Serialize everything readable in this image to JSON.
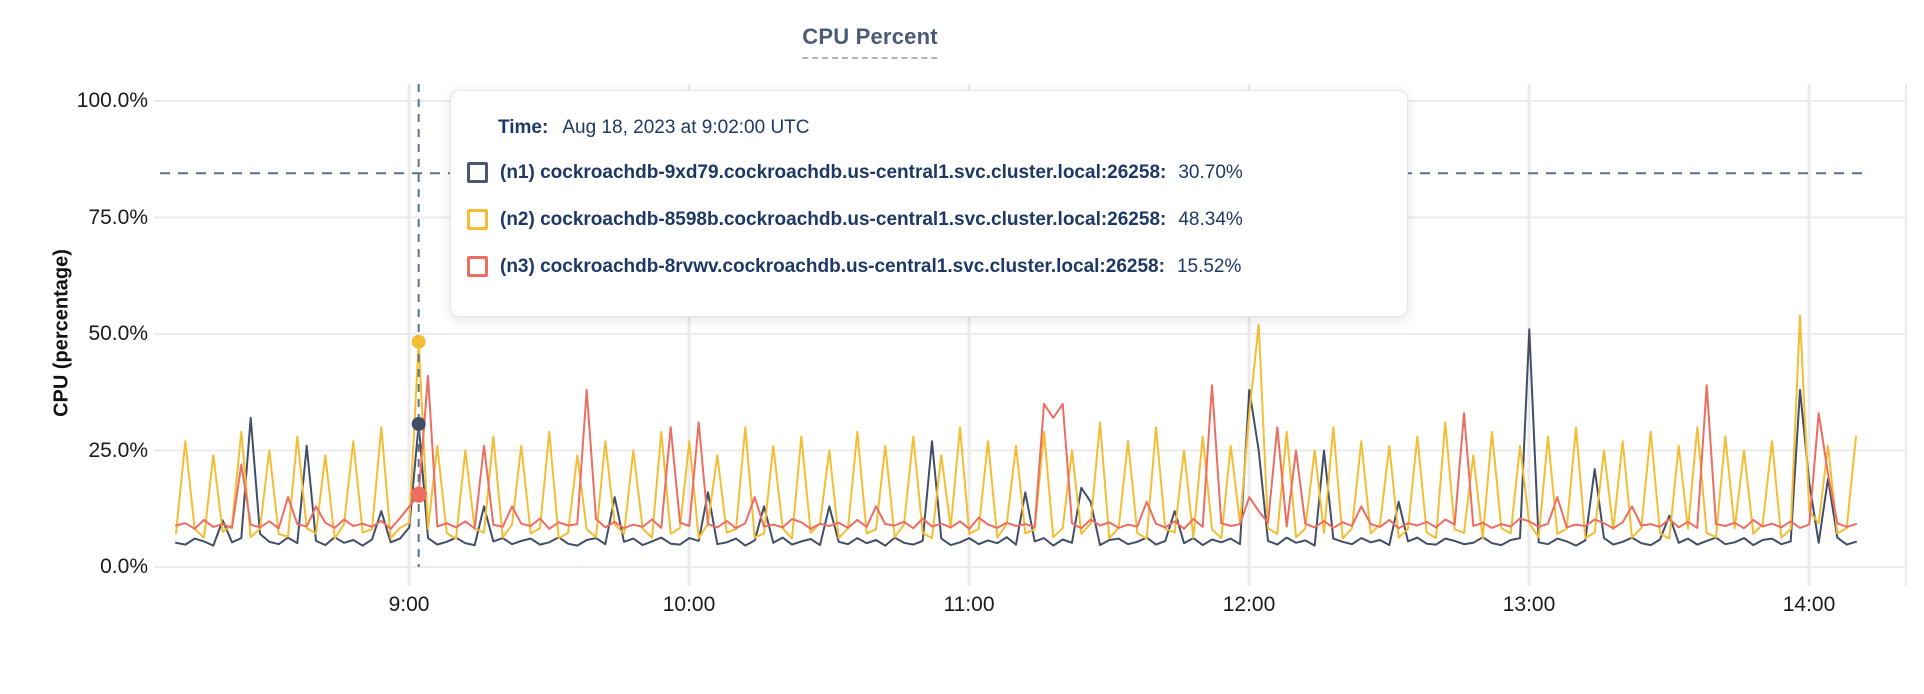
{
  "title": "CPU Percent",
  "y_axis_label": "CPU (percentage)",
  "tooltip": {
    "time_label": "Time:",
    "time_value": "Aug 18, 2023 at 9:02:00 UTC",
    "series": [
      {
        "label": "(n1) cockroachdb-9xd79.cockroachdb.us-central1.svc.cluster.local:26258:",
        "value": "30.70%",
        "color": "#475872"
      },
      {
        "label": "(n2) cockroachdb-8598b.cockroachdb.us-central1.svc.cluster.local:26258:",
        "value": "48.34%",
        "color": "#f5bd33"
      },
      {
        "label": "(n3) cockroachdb-8rvwv.cockroachdb.us-central1.svc.cluster.local:26258:",
        "value": "15.52%",
        "color": "#ec6d62"
      }
    ]
  },
  "chart_data": {
    "type": "line",
    "title": "CPU Percent",
    "xlabel": "",
    "ylabel": "CPU (percentage)",
    "x_tick_labels": [
      "9:00",
      "10:00",
      "11:00",
      "12:00",
      "13:00",
      "14:00"
    ],
    "y_tick_labels": [
      "100.0%",
      "75.0%",
      "50.0%",
      "25.0%",
      "0.0%"
    ],
    "ylim": [
      0,
      100
    ],
    "x_range": "08:10 - 14:10",
    "x_step_minutes": 2,
    "grid": true,
    "legend_position": "tooltip",
    "threshold_percent": 84.5,
    "hover": {
      "time": "9:02",
      "index": 26,
      "values": {
        "n1": 30.7,
        "n2": 48.34,
        "n3": 15.52
      }
    },
    "series": [
      {
        "id": "n1",
        "name": "(n1) cockroachdb-9xd79.cockroachdb.us-central1.svc.cluster.local:26258",
        "color": "#414e66",
        "values": [
          5.2,
          4.8,
          6.1,
          5.5,
          4.6,
          10,
          5.3,
          6.2,
          32,
          7.1,
          5.4,
          4.9,
          6.3,
          5.1,
          26,
          5.6,
          4.7,
          6.4,
          5.2,
          5.8,
          4.6,
          5.9,
          12,
          5.3,
          6.1,
          8.5,
          30.7,
          6.2,
          4.8,
          5.4,
          6.3,
          5.1,
          4.7,
          13,
          5.5,
          6.2,
          4.9,
          5.6,
          6.1,
          4.8,
          5.3,
          6.4,
          5,
          4.6,
          5.8,
          6.2,
          4.9,
          15,
          5.4,
          6.1,
          4.7,
          5.5,
          6.3,
          5,
          4.8,
          6.2,
          5.6,
          16,
          4.9,
          5.3,
          6.1,
          4.6,
          5.7,
          13,
          5.2,
          6.3,
          4.8,
          5.5,
          6,
          4.7,
          13,
          5.4,
          4.9,
          6.2,
          5.1,
          5.8,
          4.6,
          6.3,
          5.2,
          4.8,
          5.6,
          27,
          6.1,
          4.7,
          5.3,
          6.2,
          4.9,
          5.7,
          5.1,
          6.4,
          4.8,
          16,
          5.5,
          6.2,
          4.6,
          5.9,
          5.2,
          17,
          14,
          4.7,
          5.8,
          6.1,
          4.9,
          5.4,
          6.3,
          4.8,
          5.6,
          12,
          5.1,
          6.2,
          4.7,
          5.9,
          5.3,
          6.1,
          4.9,
          38,
          25,
          5.6,
          4.8,
          6.3,
          5.2,
          5.7,
          4.6,
          25,
          6.1,
          5.4,
          4.9,
          6.2,
          5.3,
          5.8,
          4.7,
          14,
          5.5,
          6.3,
          5,
          4.8,
          6.1,
          5.6,
          4.9,
          5.2,
          6.4,
          5.1,
          4.7,
          5.8,
          6.2,
          51,
          5.3,
          4.9,
          6.1,
          5.5,
          4.6,
          5.7,
          21,
          6.2,
          4.8,
          5.4,
          6.3,
          5.1,
          4.7,
          5.9,
          11,
          5.2,
          6.1,
          4.8,
          5.6,
          6.3,
          4.9,
          5.3,
          6.2,
          4.7,
          5.8,
          6.1,
          4.9,
          5.5,
          38,
          18,
          5.2,
          19,
          6.3,
          4.8,
          5.4
        ]
      },
      {
        "id": "n2",
        "name": "(n2) cockroachdb-8598b.cockroachdb.us-central1.svc.cluster.local:26258",
        "color": "#f5bd33",
        "values": [
          7.2,
          27,
          8.1,
          6.3,
          24,
          7.5,
          9,
          29,
          6.4,
          8.2,
          25,
          7.1,
          6.5,
          28,
          8.3,
          7.2,
          24,
          6.1,
          9.2,
          27,
          7.4,
          8.1,
          30,
          6.2,
          8.4,
          9.5,
          48.3,
          8.2,
          26,
          7.3,
          6.1,
          25,
          8.2,
          7.4,
          28,
          6.3,
          9.1,
          26,
          7.2,
          8.3,
          29,
          6.2,
          7.3,
          24,
          8.1,
          6.4,
          27,
          9.2,
          7.1,
          25,
          8.2,
          6.3,
          29,
          7.1,
          8.4,
          27,
          6.2,
          9.3,
          24,
          7.4,
          8.1,
          30,
          6.3,
          7.2,
          26,
          8.3,
          6.1,
          28,
          7.3,
          9.4,
          25,
          6.2,
          8.3,
          29,
          7.2,
          8.1,
          26,
          6.4,
          9.1,
          28,
          7.3,
          6.2,
          24,
          8.4,
          30,
          7.1,
          8.2,
          27,
          6.3,
          9.2,
          26,
          7.2,
          8.1,
          29,
          6.4,
          8.3,
          25,
          7.1,
          9.3,
          31,
          6.2,
          8.4,
          27,
          7.3,
          6.1,
          30,
          8.2,
          7.4,
          25,
          6.3,
          28,
          8.1,
          6.2,
          26,
          9.4,
          33,
          52,
          8.3,
          7.1,
          29,
          6.4,
          8.2,
          25,
          7.3,
          30,
          6.1,
          8.3,
          27,
          7.2,
          9.1,
          26,
          6.3,
          8.2,
          28,
          7.4,
          6.2,
          31,
          8.1,
          7.3,
          24,
          6.1,
          29,
          8.3,
          7.2,
          26,
          9.3,
          6.4,
          28,
          7.1,
          8.2,
          30,
          6.2,
          7.4,
          25,
          8.1,
          27,
          6.3,
          8.4,
          29,
          7.2,
          6.1,
          26,
          8.2,
          30,
          7.3,
          6.4,
          28,
          8.3,
          25,
          7.1,
          9.2,
          27,
          6.3,
          8.1,
          54,
          12,
          9.4,
          26,
          7.2,
          8.3,
          28
        ]
      },
      {
        "id": "n3",
        "name": "(n3) cockroachdb-8rvwv.cockroachdb.us-central1.svc.cluster.local:26258",
        "color": "#ec6d62",
        "values": [
          8.9,
          9.4,
          8.2,
          10.1,
          8.6,
          9.2,
          8.4,
          22,
          9.1,
          8.5,
          9.8,
          8.3,
          15,
          9.2,
          8.7,
          13,
          9.5,
          8.4,
          10.2,
          8.8,
          9.3,
          8.6,
          9.9,
          8.2,
          10.5,
          13,
          15.5,
          41,
          8.7,
          9.4,
          8.5,
          9.8,
          8.3,
          26,
          9.1,
          8.6,
          13,
          9.3,
          8.8,
          10.4,
          8.2,
          9.6,
          8.9,
          9.2,
          38,
          10.3,
          8.5,
          9.7,
          8.3,
          9.1,
          8.6,
          10.2,
          8.4,
          30,
          9.5,
          8.8,
          31,
          9.2,
          8.5,
          9.9,
          8.3,
          9.4,
          15,
          8.7,
          9.1,
          8.5,
          10.3,
          9.6,
          8.2,
          9.3,
          8.8,
          9.5,
          8.4,
          10.1,
          8.6,
          13,
          9.2,
          8.9,
          9.7,
          8.3,
          10.4,
          8.7,
          9.3,
          8.5,
          9.8,
          8.2,
          10.6,
          9.1,
          8.4,
          9.5,
          8.8,
          9.2,
          8.6,
          35,
          32,
          35,
          9.4,
          8.3,
          10.2,
          8.9,
          9.6,
          8.4,
          9.1,
          8.7,
          14,
          9.3,
          8.5,
          9.8,
          8.2,
          10.3,
          8.6,
          39,
          9.4,
          8.8,
          9.2,
          15,
          12,
          9.5,
          30,
          8.7,
          25,
          9.3,
          8.5,
          9.9,
          8.4,
          9.6,
          8.8,
          13,
          9.2,
          8.6,
          10.1,
          8.3,
          9.4,
          8.9,
          9.7,
          8.5,
          10.2,
          9.1,
          33,
          8.8,
          9.5,
          8.4,
          9.2,
          8.7,
          10.4,
          9.8,
          8.6,
          9.3,
          15,
          8.5,
          9.1,
          8.8,
          10.2,
          9.4,
          8.3,
          9.6,
          13,
          8.9,
          9.2,
          8.6,
          10.3,
          8.5,
          9.7,
          8.4,
          39,
          9.2,
          8.8,
          9.5,
          8.3,
          10.1,
          8.7,
          9.3,
          8.5,
          9.8,
          8.4,
          9.1,
          33,
          20,
          9.4,
          8.6,
          9.2
        ]
      }
    ]
  }
}
